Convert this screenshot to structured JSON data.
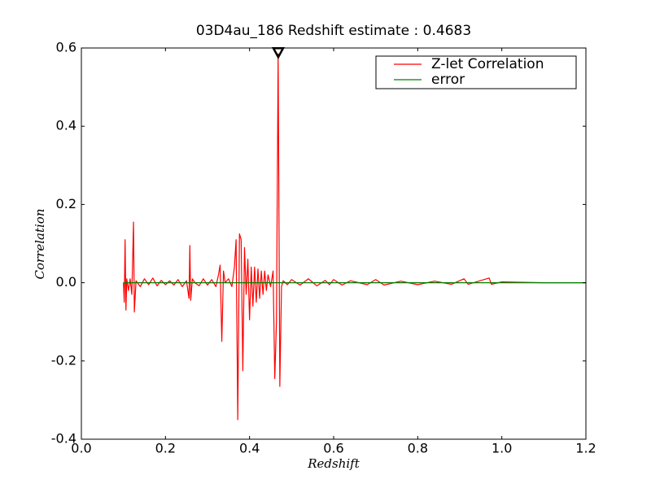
{
  "chart_data": {
    "type": "line",
    "title": "03D4au_186 Redshift estimate : 0.4683",
    "xlabel": "Redshift",
    "ylabel": "Correlation",
    "xlim": [
      0,
      1.2
    ],
    "ylim": [
      -0.4,
      0.6
    ],
    "xticks": [
      {
        "value": 0,
        "label": "0.0"
      },
      0.2,
      0.4,
      0.6,
      0.8,
      {
        "value": 1,
        "label": "1.0"
      },
      1.2
    ],
    "yticks": [
      -0.4,
      -0.2,
      {
        "value": 0,
        "label": "0.0"
      },
      0.2,
      0.4,
      0.6
    ],
    "legend": "upper-right",
    "marker": {
      "x": 0.4683,
      "y": 0.585
    },
    "series": [
      {
        "name": "Z-let Correlation",
        "color": "#ff0000",
        "x": [
          0.1,
          0.102,
          0.104,
          0.106,
          0.108,
          0.112,
          0.116,
          0.12,
          0.124,
          0.126,
          0.13,
          0.14,
          0.15,
          0.16,
          0.17,
          0.18,
          0.19,
          0.2,
          0.21,
          0.22,
          0.23,
          0.24,
          0.25,
          0.256,
          0.258,
          0.26,
          0.264,
          0.27,
          0.28,
          0.29,
          0.3,
          0.31,
          0.32,
          0.326,
          0.33,
          0.334,
          0.338,
          0.342,
          0.35,
          0.358,
          0.364,
          0.368,
          0.372,
          0.376,
          0.38,
          0.384,
          0.388,
          0.392,
          0.396,
          0.4,
          0.404,
          0.408,
          0.412,
          0.416,
          0.42,
          0.424,
          0.428,
          0.432,
          0.436,
          0.44,
          0.444,
          0.45,
          0.456,
          0.46,
          0.464,
          0.468,
          0.472,
          0.476,
          0.48,
          0.49,
          0.5,
          0.52,
          0.54,
          0.56,
          0.58,
          0.59,
          0.6,
          0.62,
          0.64,
          0.68,
          0.7,
          0.72,
          0.76,
          0.8,
          0.84,
          0.88,
          0.91,
          0.92,
          0.97,
          0.975,
          1.0,
          1.1,
          1.2
        ],
        "values": [
          0,
          -0.05,
          0.11,
          -0.07,
          0.01,
          -0.02,
          0.01,
          -0.03,
          0.155,
          -0.075,
          0.005,
          -0.01,
          0.01,
          -0.005,
          0.012,
          -0.008,
          0.006,
          -0.005,
          0.005,
          -0.006,
          0.008,
          -0.01,
          0.005,
          -0.04,
          0.095,
          -0.045,
          0.01,
          0,
          -0.008,
          0.01,
          -0.006,
          0.008,
          -0.01,
          0.02,
          0.045,
          -0.15,
          0.03,
          0,
          0.01,
          -0.01,
          0.04,
          0.11,
          -0.35,
          0.125,
          0.11,
          -0.225,
          0.09,
          -0.03,
          0.06,
          -0.095,
          0.04,
          -0.06,
          0.04,
          -0.05,
          0.035,
          -0.04,
          0.03,
          -0.03,
          0.03,
          -0.02,
          0.02,
          -0.01,
          0.03,
          -0.245,
          -0.1,
          0.585,
          -0.265,
          -0.01,
          0.005,
          -0.005,
          0.008,
          -0.006,
          0.01,
          -0.008,
          0.006,
          -0.005,
          0.008,
          -0.006,
          0.005,
          -0.005,
          0.008,
          -0.006,
          0.004,
          -0.005,
          0.004,
          -0.004,
          0.01,
          -0.004,
          0.012,
          -0.004,
          0.002,
          0,
          0
        ]
      },
      {
        "name": "error",
        "color": "#008000",
        "x": [
          0.1,
          1.2
        ],
        "values": [
          0,
          0
        ]
      }
    ]
  }
}
